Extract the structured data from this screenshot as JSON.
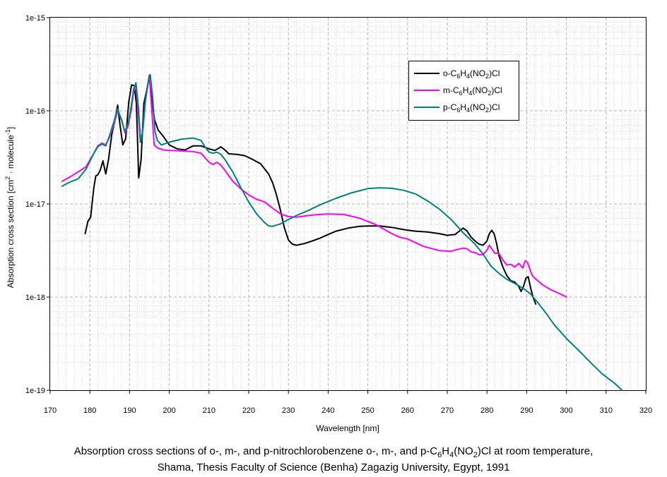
{
  "chart_data": {
    "type": "line",
    "title": "",
    "xlabel": "Wavelength [nm]",
    "ylabel": "Absorption cross section [cm² · molecule⁻¹]",
    "ylabel_parts": {
      "main": "Absorption cross section [cm",
      "sup1": "2",
      "mid": " · molecule",
      "sup2": "-1",
      "end": "]"
    },
    "xlim": [
      170,
      320
    ],
    "ylim_log10": [
      -19,
      -15
    ],
    "y_scale": "log",
    "grid": true,
    "legend_position": "top-right",
    "x_ticks": [
      "170",
      "180",
      "190",
      "200",
      "210",
      "220",
      "230",
      "240",
      "250",
      "260",
      "270",
      "280",
      "290",
      "300",
      "310",
      "320"
    ],
    "y_ticks": [
      "1e-19",
      "1e-18",
      "1e-17",
      "1e-16",
      "1e-15"
    ],
    "series": [
      {
        "name": "o-C6H4(NO2)Cl",
        "label_parts": [
          "o-C",
          "6",
          "H",
          "4",
          "(NO",
          "2",
          ")Cl"
        ],
        "color": "#000000",
        "x": [
          178.8,
          179.5,
          180.2,
          181,
          181.5,
          182,
          182.6,
          183.3,
          184,
          184.7,
          185.5,
          186.2,
          187,
          187.6,
          188.3,
          189,
          189.8,
          190.5,
          191.2,
          191.7,
          192.3,
          192.9,
          193.6,
          194.3,
          195,
          195.6,
          196.3,
          197.2,
          198.5,
          200,
          202,
          204,
          206,
          208,
          210,
          211.5,
          213,
          214,
          215,
          217,
          219,
          221,
          223,
          225,
          226,
          227,
          228,
          229,
          230,
          231,
          232,
          234,
          236,
          238,
          240,
          242,
          245,
          248,
          250,
          253,
          256,
          259,
          262,
          265,
          268,
          270,
          272,
          273,
          274,
          275,
          276,
          277,
          278,
          279,
          280,
          280.6,
          281.2,
          281.8,
          282.4,
          283,
          284,
          285,
          286,
          287,
          288,
          288.6,
          289.2,
          289.8,
          290.4,
          291,
          291.6,
          292.3
        ],
        "y": [
          4.8e-18,
          6.5e-18,
          7.2e-18,
          1.5e-17,
          2e-17,
          2.05e-17,
          2.3e-17,
          2.9e-17,
          2.1e-17,
          3e-17,
          5.5e-17,
          7.5e-17,
          1.15e-16,
          7e-17,
          4.3e-17,
          5e-17,
          1.25e-16,
          1.9e-16,
          1.85e-16,
          1.2e-16,
          1.9e-17,
          3e-17,
          1.2e-16,
          1.65e-16,
          2.4e-16,
          1.3e-16,
          8e-17,
          6.2e-17,
          5.3e-17,
          4.3e-17,
          3.9e-17,
          3.8e-17,
          4.2e-17,
          4.2e-17,
          3.9e-17,
          3.75e-17,
          4.1e-17,
          3.8e-17,
          3.45e-17,
          3.4e-17,
          3.3e-17,
          3e-17,
          2.7e-17,
          2.1e-17,
          1.7e-17,
          1.25e-17,
          8.5e-18,
          5.5e-18,
          4.1e-18,
          3.7e-18,
          3.6e-18,
          3.75e-18,
          4e-18,
          4.3e-18,
          4.7e-18,
          5.1e-18,
          5.5e-18,
          5.75e-18,
          5.8e-18,
          5.8e-18,
          5.6e-18,
          5.3e-18,
          5.1e-18,
          5e-18,
          4.8e-18,
          4.6e-18,
          4.7e-18,
          5.1e-18,
          5.5e-18,
          5.1e-18,
          4.4e-18,
          4e-18,
          3.7e-18,
          3.6e-18,
          4e-18,
          4.8e-18,
          5.2e-18,
          4.8e-18,
          3.8e-18,
          2.8e-18,
          2.1e-18,
          1.7e-18,
          1.5e-18,
          1.45e-18,
          1.3e-18,
          1.15e-18,
          1.3e-18,
          1.6e-18,
          1.65e-18,
          1.25e-18,
          1e-18,
          8.4e-19
        ]
      },
      {
        "name": "m-C6H4(NO2)Cl",
        "label_parts": [
          "m-C",
          "6",
          "H",
          "4",
          "(NO",
          "2",
          ")Cl"
        ],
        "color": "#ff00ff",
        "x": [
          173,
          175,
          177,
          179,
          181,
          182,
          183,
          184,
          185,
          186,
          187,
          188,
          188.8,
          189.6,
          190.4,
          191,
          191.6,
          192.2,
          192.7,
          193.3,
          193.9,
          194.5,
          195,
          195.6,
          196.2,
          197,
          198.5,
          200,
          203,
          206,
          208,
          210,
          211,
          212,
          213,
          214,
          215,
          216,
          218,
          220,
          222,
          224,
          226,
          228,
          230,
          232,
          236,
          240,
          244,
          248,
          252,
          256,
          258,
          260,
          264,
          268,
          271,
          272,
          274,
          275,
          276,
          277,
          278,
          279,
          280,
          280.6,
          281.2,
          282,
          283,
          284,
          285,
          286,
          287,
          288,
          289,
          289.6,
          290.2,
          290.8,
          291.4,
          292,
          294,
          296,
          298,
          300
        ],
        "y": [
          1.75e-17,
          1.95e-17,
          2.2e-17,
          2.5e-17,
          3.5e-17,
          4.2e-17,
          4.5e-17,
          4.3e-17,
          5.3e-17,
          7e-17,
          1e-16,
          8e-17,
          5.8e-17,
          6.8e-17,
          1e-16,
          1.6e-16,
          1.9e-16,
          9e-17,
          4.6e-17,
          6e-17,
          1.2e-16,
          1.8e-16,
          2.3e-16,
          1e-16,
          4.3e-17,
          4e-17,
          3.8e-17,
          3.75e-17,
          3.7e-17,
          3.65e-17,
          3.5e-17,
          2.8e-17,
          2.65e-17,
          2.8e-17,
          2.6e-17,
          2.3e-17,
          2e-17,
          1.75e-17,
          1.45e-17,
          1.25e-17,
          1.12e-17,
          1.05e-17,
          9e-18,
          7.8e-18,
          7.3e-18,
          7.2e-18,
          7.6e-18,
          7.8e-18,
          7.7e-18,
          7e-18,
          6e-18,
          4.8e-18,
          4.4e-18,
          4.2e-18,
          3.5e-18,
          3.15e-18,
          3.1e-18,
          3.2e-18,
          3.35e-18,
          3.3e-18,
          3.05e-18,
          3e-18,
          2.85e-18,
          2.85e-18,
          3.2e-18,
          3.6e-18,
          3.3e-18,
          2.95e-18,
          2.95e-18,
          2.5e-18,
          2.2e-18,
          2.25e-18,
          2.1e-18,
          2.3e-18,
          2.05e-18,
          2.45e-18,
          2.35e-18,
          2e-18,
          1.7e-18,
          1.6e-18,
          1.35e-18,
          1.2e-18,
          1.1e-18,
          1e-18
        ]
      },
      {
        "name": "p-C6H4(NO2)Cl",
        "label_parts": [
          "p-C",
          "6",
          "H",
          "4",
          "(NO",
          "2",
          ")Cl"
        ],
        "color": "#008080",
        "x": [
          173,
          175,
          177,
          179,
          181,
          182,
          183,
          184,
          185,
          186,
          187,
          188,
          188.8,
          189.6,
          190.4,
          191,
          191.6,
          192.2,
          192.8,
          193.4,
          194,
          194.6,
          195.2,
          195.8,
          196.4,
          197,
          198,
          200,
          203,
          206,
          208,
          209,
          210,
          211,
          212,
          213,
          214,
          216,
          218,
          220,
          222,
          224,
          225,
          226,
          228,
          230,
          232,
          235,
          238,
          242,
          246,
          250,
          253,
          256,
          259,
          262,
          265,
          268,
          271,
          274,
          277,
          279,
          281,
          283,
          285,
          287,
          289,
          291,
          293,
          295,
          297,
          300,
          303,
          306,
          309,
          312,
          314
        ],
        "y": [
          1.55e-17,
          1.72e-17,
          1.85e-17,
          2.35e-17,
          3.5e-17,
          4.1e-17,
          4.4e-17,
          4.2e-17,
          5.5e-17,
          7.5e-17,
          1.05e-16,
          7.8e-17,
          6e-17,
          7.2e-17,
          1.1e-16,
          1.7e-16,
          2e-16,
          1.1e-16,
          4.6e-17,
          6.5e-17,
          1.3e-16,
          1.9e-16,
          2.45e-16,
          1.4e-16,
          6e-17,
          4.8e-17,
          4.3e-17,
          4.6e-17,
          4.95e-17,
          5.1e-17,
          4.8e-17,
          4.1e-17,
          3.6e-17,
          3.5e-17,
          3.6e-17,
          3.4e-17,
          3e-17,
          2.2e-17,
          1.5e-17,
          1.05e-17,
          7.8e-18,
          6.3e-18,
          5.8e-18,
          5.75e-18,
          6.1e-18,
          6.8e-18,
          7.5e-18,
          8.5e-18,
          9.8e-18,
          1.15e-17,
          1.32e-17,
          1.46e-17,
          1.49e-17,
          1.47e-17,
          1.4e-17,
          1.28e-17,
          1.08e-17,
          8.8e-18,
          6.8e-18,
          4.9e-18,
          3.7e-18,
          2.9e-18,
          2.15e-18,
          1.8e-18,
          1.55e-18,
          1.4e-18,
          1.25e-18,
          1.08e-18,
          8.5e-19,
          6.6e-19,
          5e-19,
          3.6e-19,
          2.7e-19,
          2e-19,
          1.5e-19,
          1.2e-19,
          1e-19
        ]
      }
    ]
  },
  "caption": {
    "line1_pre": "Absorption cross sections of o-, m-, and p-nitrochlorobenzene o-, m-, and p-C",
    "sub1": "6",
    "mid1": "H",
    "sub2": "4",
    "mid2": "(NO",
    "sub3": "2",
    "line1_post": ")Cl at room temperature,",
    "line2": "Shama, Thesis Faculty of Science (Benha) Zagazig University, Egypt, 1991"
  }
}
